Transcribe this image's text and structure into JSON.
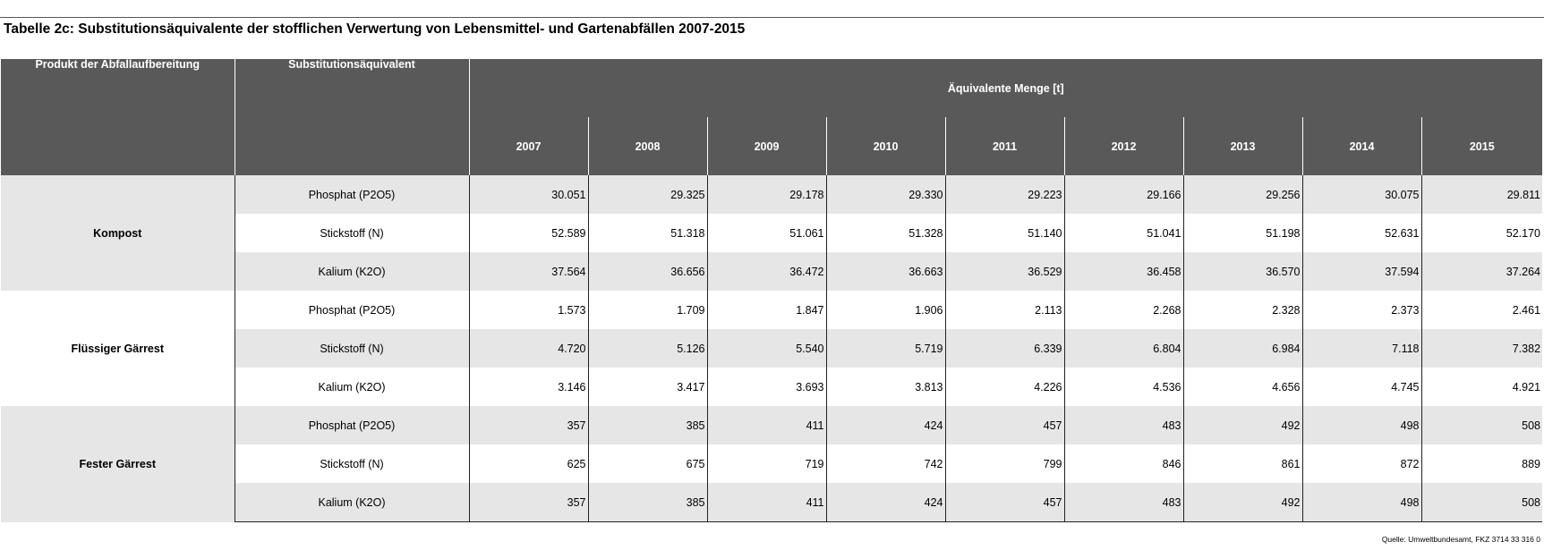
{
  "header": {
    "title": "Tabelle 2c: Substitutionsäquivalente der stofflichen Verwertung von Lebensmittel- und Gartenabfällen 2007-2015"
  },
  "table": {
    "columns": {
      "product": "Produkt der Abfallaufbereitung",
      "substitution": "Substitutionsäquivalent",
      "quantity": "Äquivalente Menge [t]",
      "years": [
        "2007",
        "2008",
        "2009",
        "2010",
        "2011",
        "2012",
        "2013",
        "2014",
        "2015"
      ]
    },
    "groups": [
      {
        "product": "Kompost",
        "rows": [
          {
            "substance": "Phosphat (P2O5)",
            "values": [
              "30.051",
              "29.325",
              "29.178",
              "29.330",
              "29.223",
              "29.166",
              "29.256",
              "30.075",
              "29.811"
            ]
          },
          {
            "substance": "Stickstoff (N)",
            "values": [
              "52.589",
              "51.318",
              "51.061",
              "51.328",
              "51.140",
              "51.041",
              "51.198",
              "52.631",
              "52.170"
            ]
          },
          {
            "substance": "Kalium (K2O)",
            "values": [
              "37.564",
              "36.656",
              "36.472",
              "36.663",
              "36.529",
              "36.458",
              "36.570",
              "37.594",
              "37.264"
            ]
          }
        ]
      },
      {
        "product": "Flüssiger Gärrest",
        "rows": [
          {
            "substance": "Phosphat (P2O5)",
            "values": [
              "1.573",
              "1.709",
              "1.847",
              "1.906",
              "2.113",
              "2.268",
              "2.328",
              "2.373",
              "2.461"
            ]
          },
          {
            "substance": "Stickstoff (N)",
            "values": [
              "4.720",
              "5.126",
              "5.540",
              "5.719",
              "6.339",
              "6.804",
              "6.984",
              "7.118",
              "7.382"
            ]
          },
          {
            "substance": "Kalium (K2O)",
            "values": [
              "3.146",
              "3.417",
              "3.693",
              "3.813",
              "4.226",
              "4.536",
              "4.656",
              "4.745",
              "4.921"
            ]
          }
        ]
      },
      {
        "product": "Fester Gärrest",
        "rows": [
          {
            "substance": "Phosphat (P2O5)",
            "values": [
              "357",
              "385",
              "411",
              "424",
              "457",
              "483",
              "492",
              "498",
              "508"
            ]
          },
          {
            "substance": "Stickstoff (N)",
            "values": [
              "625",
              "675",
              "719",
              "742",
              "799",
              "846",
              "861",
              "872",
              "889"
            ]
          },
          {
            "substance": "Kalium (K2O)",
            "values": [
              "357",
              "385",
              "411",
              "424",
              "457",
              "483",
              "492",
              "498",
              "508"
            ]
          }
        ]
      }
    ]
  },
  "footer": {
    "source": "Quelle: Umweltbundesamt, FKZ 3714 33 316 0"
  }
}
